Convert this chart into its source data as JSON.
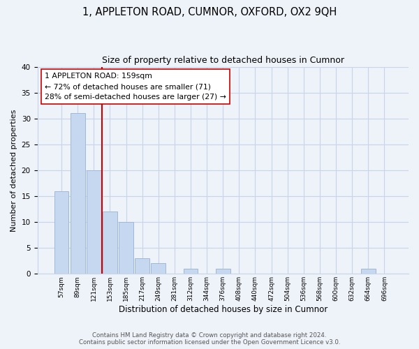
{
  "title": "1, APPLETON ROAD, CUMNOR, OXFORD, OX2 9QH",
  "subtitle": "Size of property relative to detached houses in Cumnor",
  "bar_labels": [
    "57sqm",
    "89sqm",
    "121sqm",
    "153sqm",
    "185sqm",
    "217sqm",
    "249sqm",
    "281sqm",
    "312sqm",
    "344sqm",
    "376sqm",
    "408sqm",
    "440sqm",
    "472sqm",
    "504sqm",
    "536sqm",
    "568sqm",
    "600sqm",
    "632sqm",
    "664sqm",
    "696sqm"
  ],
  "bar_values": [
    16,
    31,
    20,
    12,
    10,
    3,
    2,
    0,
    1,
    0,
    1,
    0,
    0,
    0,
    0,
    0,
    0,
    0,
    0,
    1,
    0
  ],
  "bar_color": "#c5d8f0",
  "bar_edge_color": "#a0b8d8",
  "vline_x": 3.0,
  "vline_color": "#cc0000",
  "annotation_text": "1 APPLETON ROAD: 159sqm\n← 72% of detached houses are smaller (71)\n28% of semi-detached houses are larger (27) →",
  "annotation_box_color": "white",
  "annotation_box_edge": "#cc0000",
  "ylabel": "Number of detached properties",
  "xlabel": "Distribution of detached houses by size in Cumnor",
  "ylim": [
    0,
    40
  ],
  "yticks": [
    0,
    5,
    10,
    15,
    20,
    25,
    30,
    35,
    40
  ],
  "footer_line1": "Contains HM Land Registry data © Crown copyright and database right 2024.",
  "footer_line2": "Contains public sector information licensed under the Open Government Licence v3.0.",
  "bg_color": "#eef2f9",
  "grid_color": "#c8d4e8"
}
